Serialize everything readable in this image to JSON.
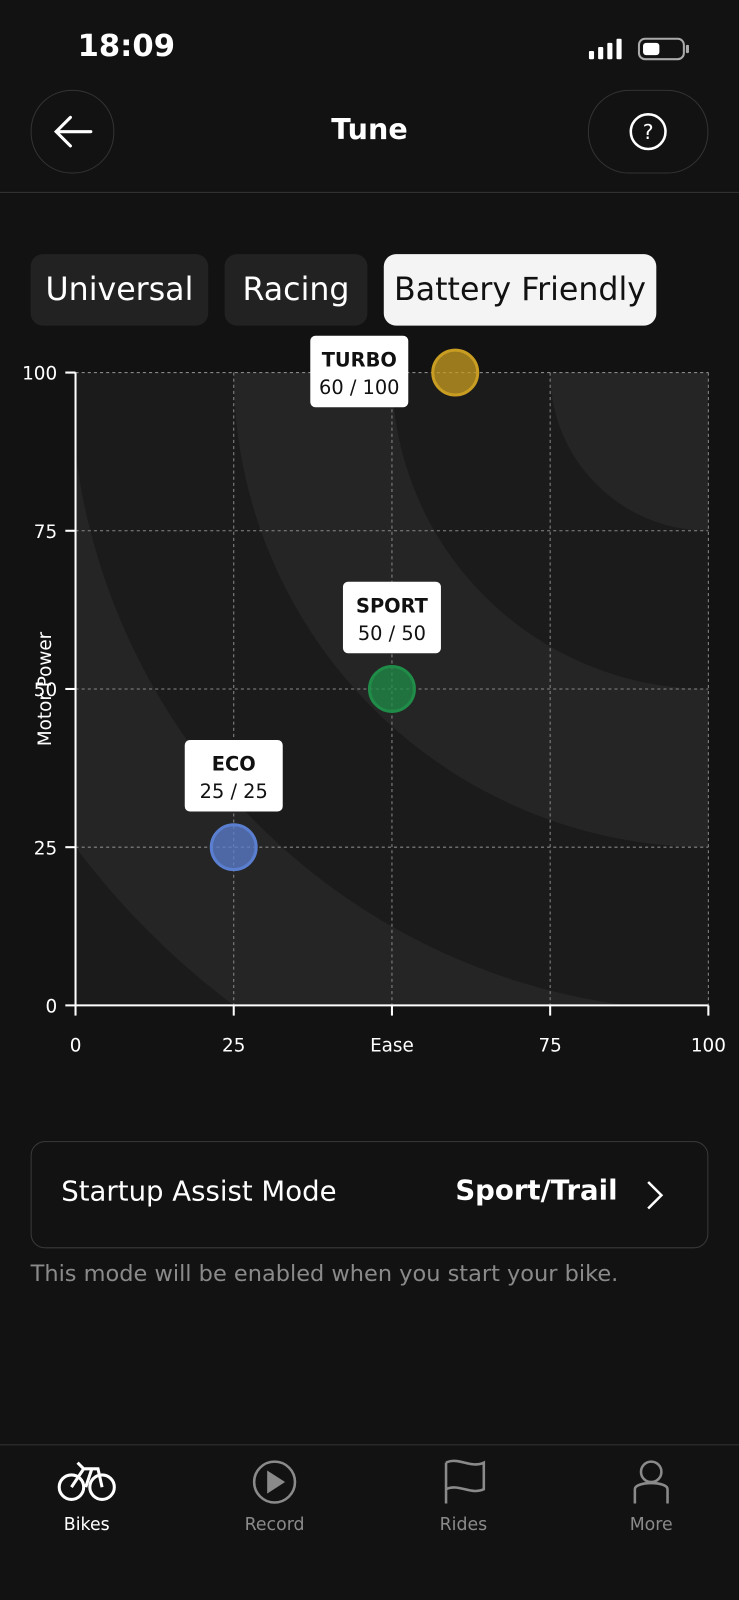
{
  "status_bar": {
    "time": "18:09"
  },
  "header": {
    "title": "Tune"
  },
  "tabs": [
    "Universal",
    "Racing",
    "Battery Friendly"
  ],
  "chart_data": {
    "type": "scatter",
    "y_label": "Motor Power",
    "xlim": [
      0,
      100
    ],
    "ylim": [
      0,
      100
    ],
    "xticks": [
      0,
      25,
      {
        "value": 50,
        "label": "Ease"
      },
      75,
      100
    ],
    "yticks": [
      0,
      25,
      50,
      75,
      100
    ],
    "grid": true,
    "series": [
      {
        "name": "ECO",
        "color": "#5b7fd0",
        "x": [
          25
        ],
        "values": [
          25
        ],
        "value_labels": [
          "25 / 25"
        ]
      },
      {
        "name": "SPORT",
        "color": "#1f8c48",
        "x": [
          50
        ],
        "values": [
          50
        ],
        "value_labels": [
          "50 / 50"
        ]
      },
      {
        "name": "TURBO",
        "color": "#c99d22",
        "x": [
          60
        ],
        "values": [
          100
        ],
        "value_labels": [
          "60 / 100"
        ]
      }
    ]
  },
  "startup": {
    "label": "Startup Assist Mode",
    "value": "Sport/Trail",
    "note": "This mode will be enabled when you start your bike."
  },
  "nav": [
    "Bikes",
    "Record",
    "Rides",
    "More"
  ]
}
